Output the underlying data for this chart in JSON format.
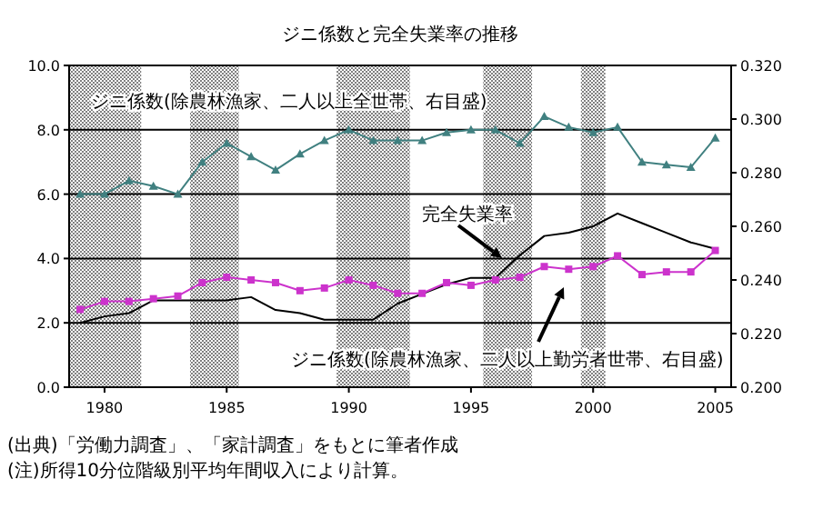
{
  "chart_data": {
    "type": "line",
    "title": "ジニ係数と完全失業率の推移",
    "x": [
      1979,
      1980,
      1981,
      1982,
      1983,
      1984,
      1985,
      1986,
      1987,
      1988,
      1989,
      1990,
      1991,
      1992,
      1993,
      1994,
      1995,
      1996,
      1997,
      1998,
      1999,
      2000,
      2001,
      2002,
      2003,
      2004,
      2005
    ],
    "xlim": [
      1978.55,
      2005.65
    ],
    "xticks": [
      1980,
      1985,
      1990,
      1995,
      2000,
      2005
    ],
    "ylim": [
      0,
      10
    ],
    "yticks": [
      {
        "value": 0,
        "label": "0.0"
      },
      {
        "value": 2,
        "label": "2.0"
      },
      {
        "value": 4,
        "label": "4.0"
      },
      {
        "value": 6,
        "label": "6.0"
      },
      {
        "value": 8,
        "label": "8.0"
      },
      {
        "value": 10,
        "label": "10.0"
      }
    ],
    "y2lim": [
      0.2,
      0.32
    ],
    "y2ticks": [
      {
        "value": 0.2,
        "label": "0.200"
      },
      {
        "value": 0.22,
        "label": "0.220"
      },
      {
        "value": 0.24,
        "label": "0.240"
      },
      {
        "value": 0.26,
        "label": "0.260"
      },
      {
        "value": 0.28,
        "label": "0.280"
      },
      {
        "value": 0.3,
        "label": "0.300"
      },
      {
        "value": 0.32,
        "label": "0.320"
      }
    ],
    "grid": "y",
    "line_style": "solid",
    "bands": [
      {
        "axis": "x",
        "from": 1978.55,
        "to": 1981.5,
        "color": "#808080"
      },
      {
        "axis": "x",
        "from": 1983.5,
        "to": 1985.5,
        "color": "#808080"
      },
      {
        "axis": "x",
        "from": 1989.5,
        "to": 1992.5,
        "color": "#808080"
      },
      {
        "axis": "x",
        "from": 1995.5,
        "to": 1997.5,
        "color": "#808080"
      },
      {
        "axis": "x",
        "from": 1999.5,
        "to": 2000.5,
        "color": "#808080"
      }
    ],
    "series": [
      {
        "name": "ジニ係数(除農林漁家、二人以上全世帯、右目盛)",
        "color": "#408080",
        "axis": "y2",
        "marker": "triangle",
        "values": [
          0.272,
          0.272,
          0.277,
          0.275,
          0.272,
          0.284,
          0.291,
          0.286,
          0.281,
          0.287,
          0.292,
          0.296,
          0.292,
          0.292,
          0.292,
          0.295,
          0.296,
          0.296,
          0.291,
          0.301,
          0.297,
          0.295,
          0.297,
          0.284,
          0.283,
          0.282,
          0.293
        ]
      },
      {
        "name": "完全失業率",
        "color": "#000000",
        "marker": "none",
        "values": [
          2.0,
          2.2,
          2.3,
          2.7,
          2.7,
          2.7,
          2.7,
          2.8,
          2.4,
          2.3,
          2.1,
          2.1,
          2.1,
          2.6,
          2.9,
          3.2,
          3.4,
          3.4,
          4.1,
          4.7,
          4.8,
          5.0,
          5.4,
          5.1,
          4.8,
          4.5,
          4.3
        ]
      },
      {
        "name": "ジニ係数(除農林漁家、二人以上勤労者世帯、右目盛)",
        "color": "#cc33cc",
        "axis": "y2",
        "marker": "square",
        "values": [
          0.229,
          0.232,
          0.232,
          0.233,
          0.234,
          0.239,
          0.241,
          0.24,
          0.239,
          0.236,
          0.237,
          0.24,
          0.238,
          0.235,
          0.235,
          0.239,
          0.238,
          0.24,
          0.241,
          0.245,
          0.244,
          0.245,
          0.249,
          0.242,
          0.243,
          0.243,
          0.251
        ]
      }
    ],
    "annotations": [
      "(出典)「労働力調査」、「家計調査」をもとに筆者作成",
      "(注)所得10分位階級別平均年間収入により計算。"
    ]
  }
}
